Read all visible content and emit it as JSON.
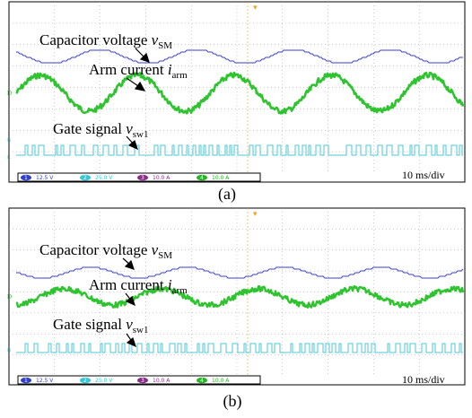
{
  "panels": [
    {
      "id": "a",
      "caption": "(a)",
      "timebase": "10 ms/div",
      "labels": {
        "capacitor": "Capacitor voltage ",
        "capacitor_var": "v",
        "capacitor_sub": "SM",
        "arm": "Arm current ",
        "arm_var": "i",
        "arm_sub": "arm",
        "gate": "Gate signal ",
        "gate_var": "v",
        "gate_sub": "sw1"
      },
      "channels": [
        {
          "num": "1",
          "scale": "12.5 V",
          "color": "#2f3fd0"
        },
        {
          "num": "2",
          "scale": "25.0 V",
          "color": "#35c7d8"
        },
        {
          "num": "3",
          "scale": "10.0 A",
          "color": "#8a2e8a"
        },
        {
          "num": "4",
          "scale": "10.0 A",
          "color": "#27b427"
        }
      ]
    },
    {
      "id": "b",
      "caption": "(b)",
      "timebase": "10 ms/div",
      "labels": {
        "capacitor": "Capacitor voltage ",
        "capacitor_var": "v",
        "capacitor_sub": "SM",
        "arm": "Arm current ",
        "arm_var": "i",
        "arm_sub": "arm",
        "gate": "Gate signal ",
        "gate_var": "v",
        "gate_sub": "sw1"
      },
      "channels": [
        {
          "num": "1",
          "scale": "12.5 V",
          "color": "#2f3fd0"
        },
        {
          "num": "2",
          "scale": "25.0 V",
          "color": "#35c7d8"
        },
        {
          "num": "3",
          "scale": "10.0 A",
          "color": "#8a2e8a"
        },
        {
          "num": "4",
          "scale": "10.0 A",
          "color": "#27b427"
        }
      ]
    }
  ],
  "colors": {
    "capacitor_trace": "#3a3fc8",
    "current_trace": "#2fc42f",
    "gate_trace": "#4cc8d8",
    "grid": "#8c8c8c",
    "trigger_marker": "#f0a020"
  }
}
